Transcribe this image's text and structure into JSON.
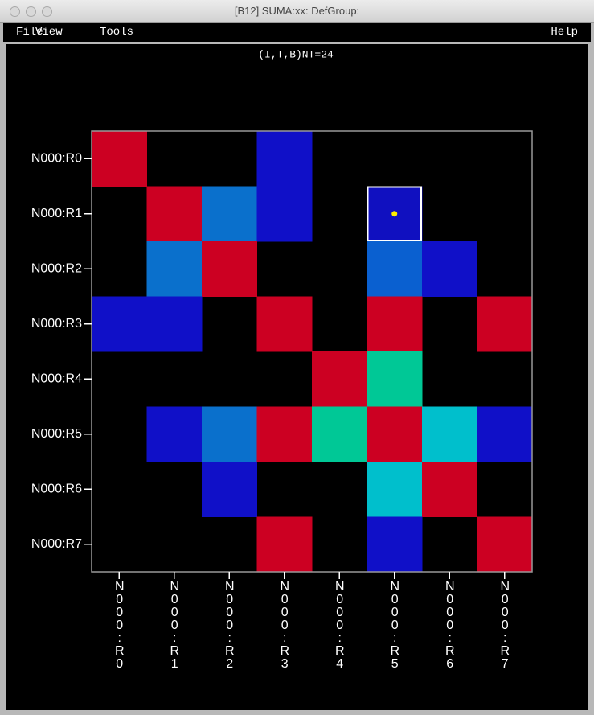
{
  "window": {
    "title": "[B12] SUMA:xx: DefGroup:"
  },
  "menu": {
    "left": [
      "File",
      "View",
      "Tools"
    ],
    "right": "Help"
  },
  "matrix": {
    "subtitle": "(I,T,B)NT=24",
    "rows": [
      "N000:R0",
      "N000:R1",
      "N000:R2",
      "N000:R3",
      "N000:R4",
      "N000:R5",
      "N000:R6",
      "N000:R7"
    ],
    "columns": [
      "N000:R0",
      "N000:R1",
      "N000:R2",
      "N000:R3",
      "N000:R4",
      "N000:R5",
      "N000:R6",
      "N000:R7"
    ],
    "cells": [
      [
        "#cc0022",
        null,
        null,
        "#1010c8",
        null,
        null,
        null,
        null
      ],
      [
        null,
        "#cc0022",
        "#0a70cc",
        "#1010c8",
        null,
        "#1010c0",
        null,
        null
      ],
      [
        null,
        "#0a70cc",
        "#cc0022",
        null,
        null,
        "#0a60d0",
        "#1010c8",
        null
      ],
      [
        "#1010c8",
        "#1010c8",
        null,
        "#cc0022",
        null,
        "#cc0022",
        null,
        "#cc0022"
      ],
      [
        null,
        null,
        null,
        null,
        "#cc0022",
        "#00c896",
        null,
        null
      ],
      [
        null,
        "#1010c8",
        "#0a70cc",
        "#cc0022",
        "#00c896",
        "#cc0022",
        "#00bfcc",
        "#1010c8"
      ],
      [
        null,
        null,
        "#1010c8",
        null,
        null,
        "#00bfcc",
        "#cc0022",
        null
      ],
      [
        null,
        null,
        null,
        "#cc0022",
        null,
        "#1010c8",
        null,
        "#cc0022"
      ]
    ],
    "selected": {
      "row": 1,
      "column": 5
    }
  }
}
